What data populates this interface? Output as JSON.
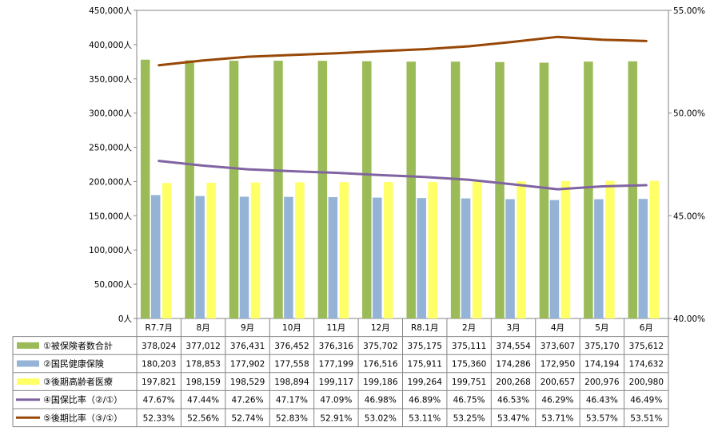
{
  "chart_data": {
    "type": "bar",
    "title": "",
    "xlabel": "",
    "ylabel": "",
    "categories": [
      "R7.7月",
      "8月",
      "9月",
      "10月",
      "11月",
      "12月",
      "R8.1月",
      "2月",
      "3月",
      "4月",
      "5月",
      "6月"
    ],
    "y_left": {
      "min": 0,
      "max": 450000,
      "step": 50000,
      "tick_labels": [
        "0人",
        "50,000人",
        "100,000人",
        "150,000人",
        "200,000人",
        "250,000人",
        "300,000人",
        "350,000人",
        "400,000人",
        "450,000人"
      ]
    },
    "y_right": {
      "min": 40,
      "max": 55,
      "step": 5,
      "tick_labels": [
        "40.00%",
        "45.00%",
        "50.00%",
        "55.00%"
      ]
    },
    "grid": {
      "horizontal": false
    },
    "legend": "table-below",
    "series": [
      {
        "name": "①被保険者数合計",
        "kind": "bar",
        "axis": "left",
        "color": "#9BBB59",
        "values": [
          378024,
          377012,
          376431,
          376452,
          376316,
          375702,
          375175,
          375111,
          374554,
          373607,
          375170,
          375612
        ],
        "labels": [
          "378,024",
          "377,012",
          "376,431",
          "376,452",
          "376,316",
          "375,702",
          "375,175",
          "375,111",
          "374,554",
          "373,607",
          "375,170",
          "375,612"
        ]
      },
      {
        "name": "②国民健康保険",
        "kind": "bar",
        "axis": "left",
        "color": "#95B3D7",
        "values": [
          180203,
          178853,
          177902,
          177558,
          177199,
          176516,
          175911,
          175360,
          174286,
          172950,
          174194,
          174632
        ],
        "labels": [
          "180,203",
          "178,853",
          "177,902",
          "177,558",
          "177,199",
          "176,516",
          "175,911",
          "175,360",
          "174,286",
          "172,950",
          "174,194",
          "174,632"
        ]
      },
      {
        "name": "③後期高齢者医療",
        "kind": "bar",
        "axis": "left",
        "color": "#FFFF66",
        "values": [
          197821,
          198159,
          198529,
          198894,
          199117,
          199186,
          199264,
          199751,
          200268,
          200657,
          200976,
          200980
        ],
        "labels": [
          "197,821",
          "198,159",
          "198,529",
          "198,894",
          "199,117",
          "199,186",
          "199,264",
          "199,751",
          "200,268",
          "200,657",
          "200,976",
          "200,980"
        ]
      },
      {
        "name": "④国保比率（②/①）",
        "kind": "line",
        "axis": "right",
        "color": "#8064A2",
        "values": [
          47.67,
          47.44,
          47.26,
          47.17,
          47.09,
          46.98,
          46.89,
          46.75,
          46.53,
          46.29,
          46.43,
          46.49
        ],
        "labels": [
          "47.67%",
          "47.44%",
          "47.26%",
          "47.17%",
          "47.09%",
          "46.98%",
          "46.89%",
          "46.75%",
          "46.53%",
          "46.29%",
          "46.43%",
          "46.49%"
        ]
      },
      {
        "name": "⑤後期比率（③/①）",
        "kind": "line",
        "axis": "right",
        "color": "#984807",
        "values": [
          52.33,
          52.56,
          52.74,
          52.83,
          52.91,
          53.02,
          53.11,
          53.25,
          53.47,
          53.71,
          53.57,
          53.51
        ],
        "labels": [
          "52.33%",
          "52.56%",
          "52.74%",
          "52.83%",
          "52.91%",
          "53.02%",
          "53.11%",
          "53.25%",
          "53.47%",
          "53.71%",
          "53.57%",
          "53.51%"
        ]
      }
    ]
  }
}
